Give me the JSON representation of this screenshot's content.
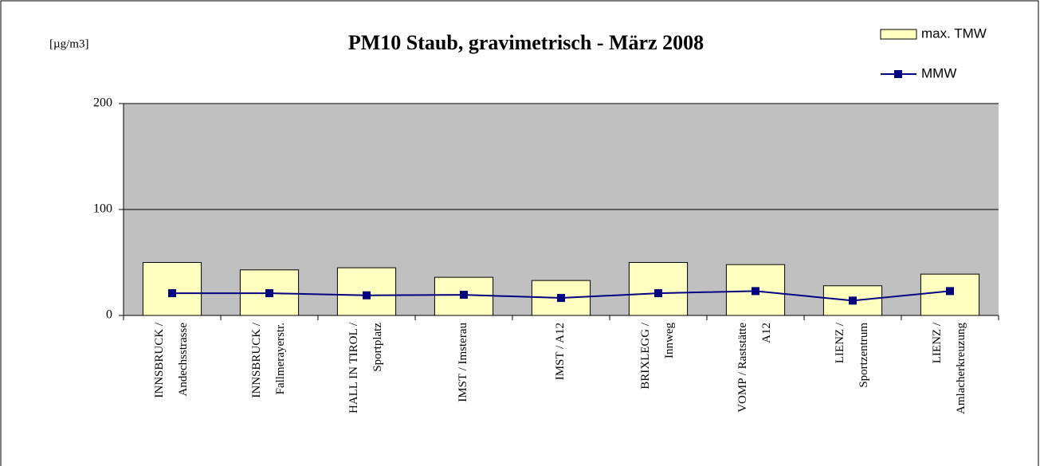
{
  "chart_data": {
    "type": "bar_line",
    "title": "PM10 Staub, gravimetrisch - März 2008",
    "unit_label": "[µg/m3]",
    "categories": [
      "INNSBRUCK /\nAndechsstrasse",
      "INNSBRUCK /\nFallmerayerstr.",
      "HALL IN TIROL /\nSportplatz",
      "IMST / Imsterau",
      "IMST / A12",
      "BRIXLEGG /\nInnweg",
      "VOMP / Raststätte\nA12",
      "LIENZ /\nSportzentrum",
      "LIENZ /\nAmlacherkreuzung"
    ],
    "series": [
      {
        "name": "max. TMW",
        "type": "bar",
        "color": "#ffffc0",
        "values": [
          50,
          43,
          45,
          36,
          33,
          50,
          48,
          28,
          39
        ]
      },
      {
        "name": "MMW",
        "type": "line",
        "color": "#000080",
        "values": [
          21,
          21,
          19,
          19.5,
          16.5,
          21,
          23,
          14,
          23
        ]
      }
    ],
    "ylim": [
      0,
      200
    ],
    "yticks": [
      0,
      100,
      200
    ],
    "grid": true
  }
}
